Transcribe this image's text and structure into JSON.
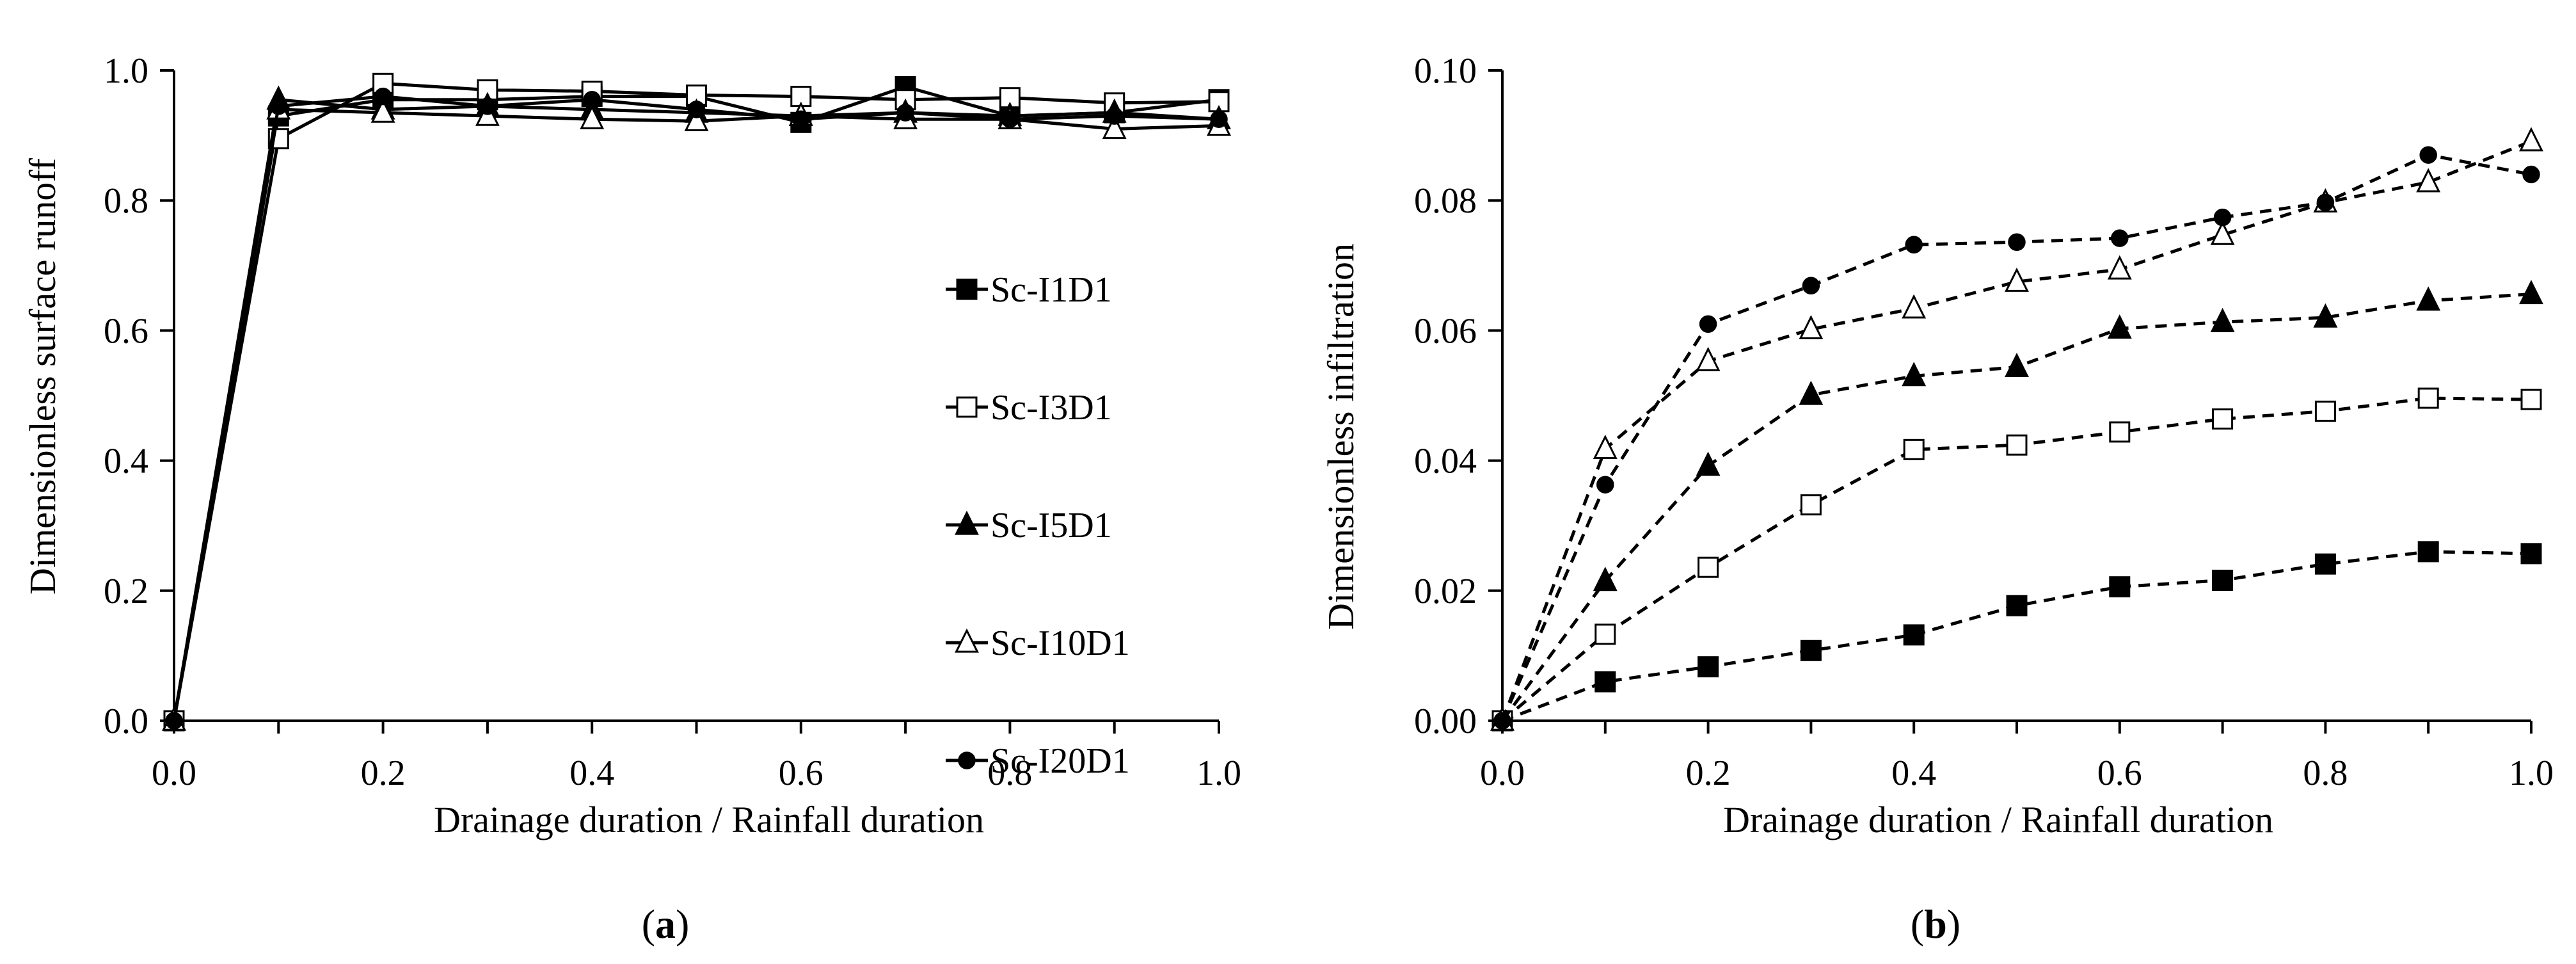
{
  "figure": {
    "panels": [
      {
        "caption_open": "(",
        "caption_letter": "a",
        "caption_close": ")"
      },
      {
        "caption_open": "(",
        "caption_letter": "b",
        "caption_close": ")"
      }
    ]
  },
  "chart_data": [
    {
      "type": "line",
      "panel": "a",
      "title": "",
      "xlabel": "Drainage duration / Rainfall duration",
      "ylabel": "Dimensionless surface runoff",
      "xlim": [
        0,
        1
      ],
      "ylim": [
        0,
        1
      ],
      "xticks": [
        0,
        0.2,
        0.4,
        0.6,
        0.8,
        1.0
      ],
      "xtick_labels": [
        "0.0",
        "0.2",
        "0.4",
        "0.6",
        "0.8",
        "1.0"
      ],
      "yticks": [
        0,
        0.2,
        0.4,
        0.6,
        0.8,
        1.0
      ],
      "ytick_labels": [
        "0.0",
        "0.2",
        "0.4",
        "0.6",
        "0.8",
        "1.0"
      ],
      "grid": false,
      "legend_position": "right",
      "x": [
        0,
        0.1,
        0.2,
        0.3,
        0.4,
        0.5,
        0.6,
        0.7,
        0.8,
        0.9,
        1.0
      ],
      "series": [
        {
          "name": "Sc-I1D1",
          "marker": "filled-square",
          "line": "solid",
          "values": [
            0,
            0.93,
            0.955,
            0.955,
            0.96,
            0.96,
            0.92,
            0.975,
            0.93,
            0.935,
            0.955
          ]
        },
        {
          "name": "Sc-I3D1",
          "marker": "open-square",
          "line": "solid",
          "values": [
            0,
            0.895,
            0.98,
            0.97,
            0.968,
            0.962,
            0.96,
            0.955,
            0.958,
            0.95,
            0.952
          ]
        },
        {
          "name": "Sc-I5D1",
          "marker": "filled-triangle",
          "line": "solid",
          "values": [
            0,
            0.955,
            0.94,
            0.945,
            0.94,
            0.935,
            0.93,
            0.935,
            0.93,
            0.935,
            0.925
          ]
        },
        {
          "name": "Sc-I10D1",
          "marker": "open-triangle",
          "line": "solid",
          "values": [
            0,
            0.94,
            0.935,
            0.93,
            0.925,
            0.922,
            0.93,
            0.925,
            0.925,
            0.91,
            0.915
          ]
        },
        {
          "name": "Sc-I20D1",
          "marker": "filled-circle",
          "line": "solid",
          "values": [
            0,
            0.945,
            0.96,
            0.945,
            0.955,
            0.94,
            0.925,
            0.935,
            0.925,
            0.93,
            0.925
          ]
        }
      ]
    },
    {
      "type": "line",
      "panel": "b",
      "title": "",
      "xlabel": "Drainage duration / Rainfall duration",
      "ylabel": "Dimensionless infiltration",
      "xlim": [
        0,
        1
      ],
      "ylim": [
        0,
        0.1
      ],
      "xticks": [
        0,
        0.2,
        0.4,
        0.6,
        0.8,
        1.0
      ],
      "xtick_labels": [
        "0.0",
        "0.2",
        "0.4",
        "0.6",
        "0.8",
        "1.0"
      ],
      "yticks": [
        0,
        0.02,
        0.04,
        0.06,
        0.08,
        0.1
      ],
      "ytick_labels": [
        "0.00",
        "0.02",
        "0.04",
        "0.06",
        "0.08",
        "0.10"
      ],
      "grid": false,
      "legend_position": "none",
      "x": [
        0,
        0.1,
        0.2,
        0.3,
        0.4,
        0.5,
        0.6,
        0.7,
        0.8,
        0.9,
        1.0
      ],
      "series": [
        {
          "name": "Sc-I1D1",
          "marker": "filled-square",
          "line": "dashed",
          "values": [
            0,
            0.006,
            0.0083,
            0.0108,
            0.0132,
            0.0177,
            0.0206,
            0.0216,
            0.0241,
            0.026,
            0.0257
          ]
        },
        {
          "name": "Sc-I3D1",
          "marker": "open-square",
          "line": "dashed",
          "values": [
            0,
            0.0133,
            0.0236,
            0.0332,
            0.0417,
            0.0424,
            0.0444,
            0.0464,
            0.0476,
            0.0496,
            0.0494
          ]
        },
        {
          "name": "Sc-I5D1",
          "marker": "filled-triangle",
          "line": "dashed",
          "values": [
            0,
            0.0215,
            0.0392,
            0.0501,
            0.053,
            0.0544,
            0.0603,
            0.0613,
            0.062,
            0.0646,
            0.0656
          ]
        },
        {
          "name": "Sc-I10D1",
          "marker": "open-triangle",
          "line": "dashed",
          "values": [
            0,
            0.0418,
            0.0553,
            0.0602,
            0.0634,
            0.0675,
            0.0694,
            0.0747,
            0.0797,
            0.0828,
            0.0891
          ]
        },
        {
          "name": "Sc-I20D1",
          "marker": "filled-circle",
          "line": "dashed",
          "values": [
            0,
            0.0363,
            0.061,
            0.0669,
            0.0732,
            0.0736,
            0.0742,
            0.0774,
            0.0797,
            0.087,
            0.084
          ]
        }
      ]
    }
  ]
}
